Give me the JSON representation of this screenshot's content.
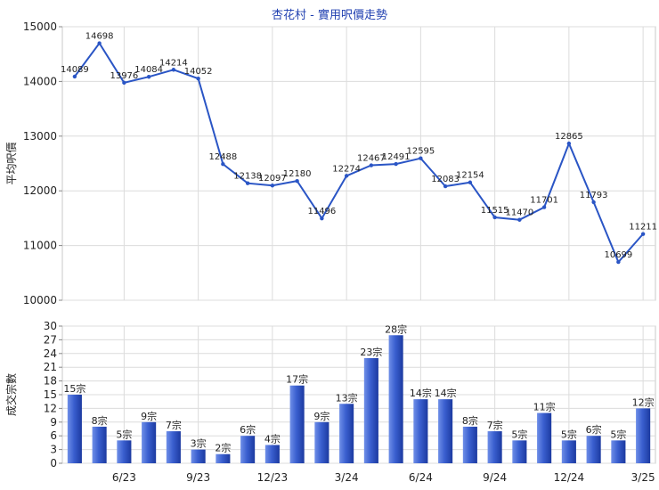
{
  "chart_data": [
    {
      "type": "line",
      "title": "杏花村 - 實用呎價走勢",
      "ylabel": "平均呎價",
      "ylim": [
        10000,
        15000
      ],
      "yticks": [
        10000,
        11000,
        12000,
        13000,
        14000,
        15000
      ],
      "grid": true,
      "color": "#2a55c5",
      "series": [
        {
          "values": [
            14089,
            14698,
            13976,
            14084,
            14214,
            14052,
            12488,
            12138,
            12097,
            12180,
            11496,
            12274,
            12467,
            12491,
            12595,
            12083,
            12154,
            11515,
            11470,
            11701,
            12865,
            11793,
            10699,
            11211
          ]
        }
      ]
    },
    {
      "type": "bar",
      "ylabel": "成交宗數",
      "ylim": [
        0,
        30
      ],
      "yticks": [
        0,
        3,
        6,
        9,
        12,
        15,
        18,
        21,
        24,
        27,
        30
      ],
      "xticks": [
        "6/23",
        "9/23",
        "12/23",
        "3/24",
        "6/24",
        "9/24",
        "12/24",
        "3/25"
      ],
      "value_suffix": "宗",
      "grid": true,
      "color": "#3a5fcf",
      "series": [
        {
          "values": [
            15,
            8,
            5,
            9,
            7,
            3,
            2,
            6,
            4,
            17,
            9,
            13,
            23,
            28,
            14,
            14,
            8,
            7,
            5,
            11,
            5,
            6,
            5,
            12
          ]
        }
      ]
    }
  ]
}
